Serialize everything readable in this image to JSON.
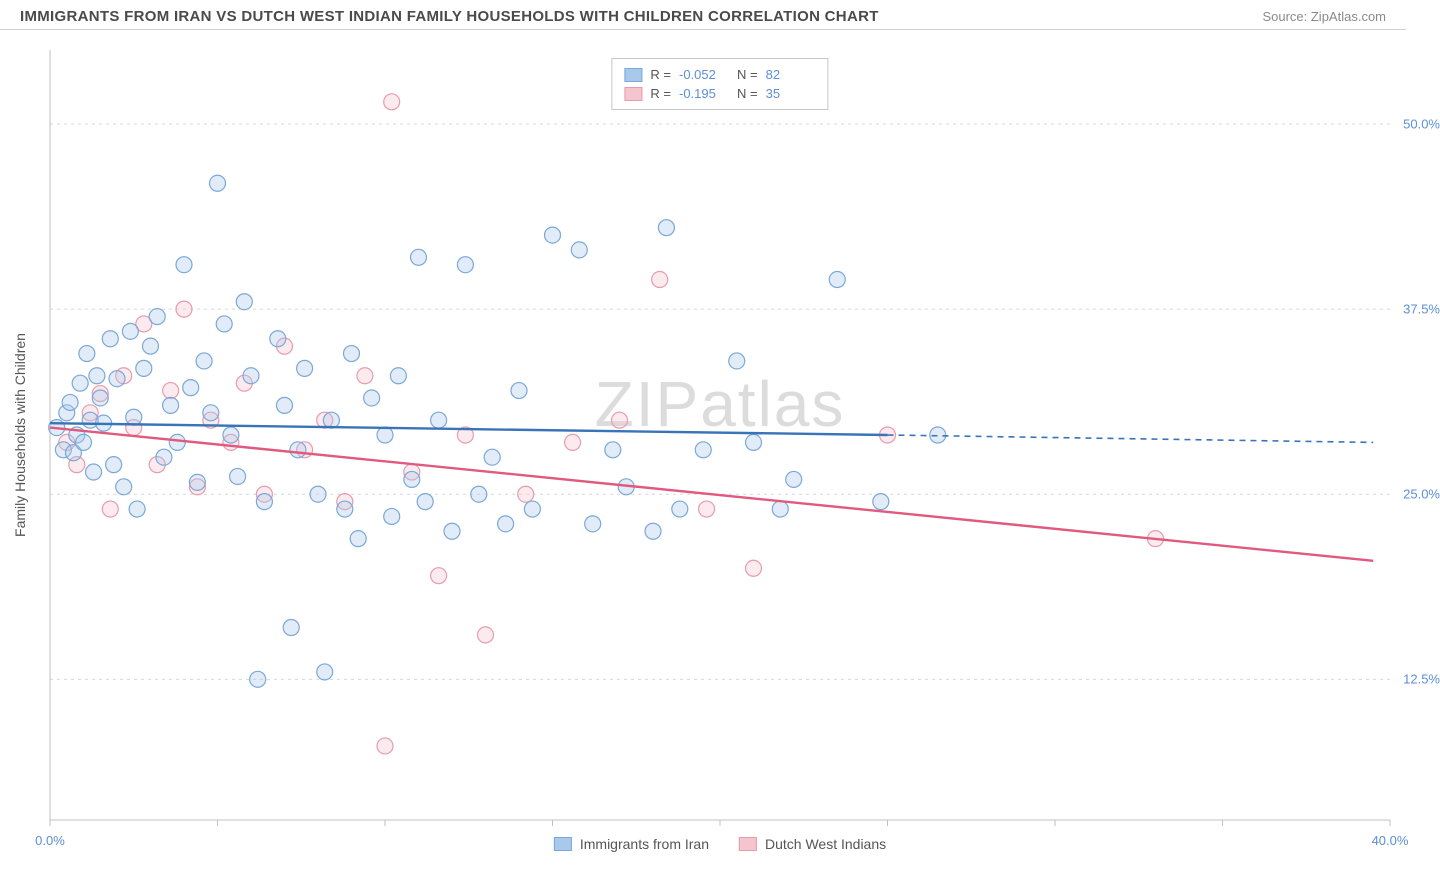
{
  "title": "IMMIGRANTS FROM IRAN VS DUTCH WEST INDIAN FAMILY HOUSEHOLDS WITH CHILDREN CORRELATION CHART",
  "source": "Source: ZipAtlas.com",
  "watermark": "ZIPatlas",
  "chart": {
    "type": "scatter",
    "background_color": "#ffffff",
    "grid_color": "#d8d8d8",
    "axis_color": "#c0c0c0",
    "y_axis_label": "Family Households with Children",
    "xlim": [
      0,
      40
    ],
    "ylim": [
      3,
      55
    ],
    "x_ticks": [
      0,
      5,
      10,
      15,
      20,
      25,
      30,
      35,
      40
    ],
    "x_tick_labels": {
      "0": "0.0%",
      "40": "40.0%"
    },
    "y_ticks": [
      12.5,
      25.0,
      37.5,
      50.0
    ],
    "y_tick_labels": [
      "12.5%",
      "25.0%",
      "37.5%",
      "50.0%"
    ],
    "tick_label_color": "#5b8fd6",
    "axis_label_color": "#555555",
    "marker_radius": 8,
    "marker_stroke_width": 1.2,
    "marker_fill_opacity": 0.35,
    "reg_line_width": 2.4,
    "series": [
      {
        "name": "Immigrants from Iran",
        "color_fill": "#a9c9ec",
        "color_stroke": "#7aa8d8",
        "line_color": "#3973b8",
        "R": "-0.052",
        "N": "82",
        "regression": {
          "x0": 0,
          "y0": 29.8,
          "x1": 25,
          "y1": 29.0,
          "dash_x1": 39.5,
          "dash_y1": 28.5
        },
        "points": [
          [
            0.2,
            29.5
          ],
          [
            0.4,
            28.0
          ],
          [
            0.5,
            30.5
          ],
          [
            0.6,
            31.2
          ],
          [
            0.7,
            27.8
          ],
          [
            0.8,
            29.0
          ],
          [
            0.9,
            32.5
          ],
          [
            1.0,
            28.5
          ],
          [
            1.1,
            34.5
          ],
          [
            1.2,
            30.0
          ],
          [
            1.3,
            26.5
          ],
          [
            1.4,
            33.0
          ],
          [
            1.5,
            31.5
          ],
          [
            1.6,
            29.8
          ],
          [
            1.8,
            35.5
          ],
          [
            1.9,
            27.0
          ],
          [
            2.0,
            32.8
          ],
          [
            2.2,
            25.5
          ],
          [
            2.4,
            36.0
          ],
          [
            2.5,
            30.2
          ],
          [
            2.6,
            24.0
          ],
          [
            2.8,
            33.5
          ],
          [
            3.0,
            35.0
          ],
          [
            3.2,
            37.0
          ],
          [
            3.4,
            27.5
          ],
          [
            3.6,
            31.0
          ],
          [
            3.8,
            28.5
          ],
          [
            4.0,
            40.5
          ],
          [
            4.2,
            32.2
          ],
          [
            4.4,
            25.8
          ],
          [
            4.6,
            34.0
          ],
          [
            4.8,
            30.5
          ],
          [
            5.0,
            46.0
          ],
          [
            5.2,
            36.5
          ],
          [
            5.4,
            29.0
          ],
          [
            5.6,
            26.2
          ],
          [
            5.8,
            38.0
          ],
          [
            6.0,
            33.0
          ],
          [
            6.2,
            12.5
          ],
          [
            6.4,
            24.5
          ],
          [
            6.8,
            35.5
          ],
          [
            7.0,
            31.0
          ],
          [
            7.2,
            16.0
          ],
          [
            7.4,
            28.0
          ],
          [
            7.6,
            33.5
          ],
          [
            8.0,
            25.0
          ],
          [
            8.2,
            13.0
          ],
          [
            8.4,
            30.0
          ],
          [
            8.8,
            24.0
          ],
          [
            9.0,
            34.5
          ],
          [
            9.2,
            22.0
          ],
          [
            9.6,
            31.5
          ],
          [
            10.0,
            29.0
          ],
          [
            10.2,
            23.5
          ],
          [
            10.4,
            33.0
          ],
          [
            10.8,
            26.0
          ],
          [
            11.0,
            41.0
          ],
          [
            11.2,
            24.5
          ],
          [
            11.6,
            30.0
          ],
          [
            12.0,
            22.5
          ],
          [
            12.4,
            40.5
          ],
          [
            12.8,
            25.0
          ],
          [
            13.2,
            27.5
          ],
          [
            13.6,
            23.0
          ],
          [
            14.0,
            32.0
          ],
          [
            14.4,
            24.0
          ],
          [
            15.0,
            42.5
          ],
          [
            15.8,
            41.5
          ],
          [
            16.2,
            23.0
          ],
          [
            16.8,
            28.0
          ],
          [
            17.2,
            25.5
          ],
          [
            18.0,
            22.5
          ],
          [
            18.4,
            43.0
          ],
          [
            18.8,
            24.0
          ],
          [
            19.5,
            28.0
          ],
          [
            20.5,
            34.0
          ],
          [
            21.0,
            28.5
          ],
          [
            21.8,
            24.0
          ],
          [
            22.2,
            26.0
          ],
          [
            23.5,
            39.5
          ],
          [
            24.8,
            24.5
          ],
          [
            26.5,
            29.0
          ]
        ]
      },
      {
        "name": "Dutch West Indians",
        "color_fill": "#f5c5cf",
        "color_stroke": "#e89bad",
        "line_color": "#e05a7f",
        "R": "-0.195",
        "N": "35",
        "regression": {
          "x0": 0,
          "y0": 29.5,
          "x1": 39.5,
          "y1": 20.5
        },
        "points": [
          [
            0.5,
            28.5
          ],
          [
            0.8,
            27.0
          ],
          [
            1.2,
            30.5
          ],
          [
            1.5,
            31.8
          ],
          [
            1.8,
            24.0
          ],
          [
            2.2,
            33.0
          ],
          [
            2.5,
            29.5
          ],
          [
            2.8,
            36.5
          ],
          [
            3.2,
            27.0
          ],
          [
            3.6,
            32.0
          ],
          [
            4.0,
            37.5
          ],
          [
            4.4,
            25.5
          ],
          [
            4.8,
            30.0
          ],
          [
            5.4,
            28.5
          ],
          [
            5.8,
            32.5
          ],
          [
            6.4,
            25.0
          ],
          [
            7.0,
            35.0
          ],
          [
            7.6,
            28.0
          ],
          [
            8.2,
            30.0
          ],
          [
            8.8,
            24.5
          ],
          [
            9.4,
            33.0
          ],
          [
            10.0,
            8.0
          ],
          [
            10.2,
            51.5
          ],
          [
            10.8,
            26.5
          ],
          [
            11.6,
            19.5
          ],
          [
            12.4,
            29.0
          ],
          [
            13.0,
            15.5
          ],
          [
            14.2,
            25.0
          ],
          [
            15.6,
            28.5
          ],
          [
            17.0,
            30.0
          ],
          [
            18.2,
            39.5
          ],
          [
            19.6,
            24.0
          ],
          [
            21.0,
            20.0
          ],
          [
            25.0,
            29.0
          ],
          [
            33.0,
            22.0
          ]
        ]
      }
    ],
    "legend_top": {
      "R_label": "R =",
      "N_label": "N ="
    }
  }
}
